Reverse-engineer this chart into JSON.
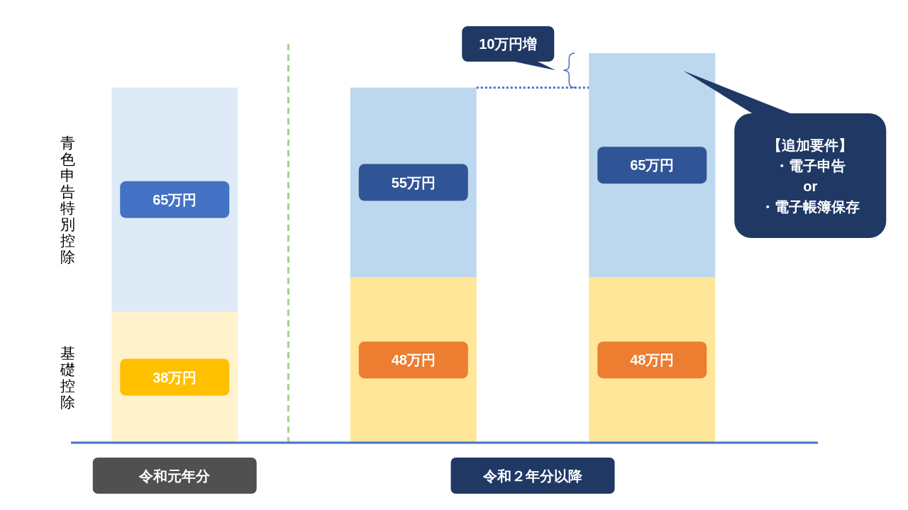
{
  "chart_data": {
    "type": "bar",
    "stacked": true,
    "tick_labels": "x",
    "categories": [
      "令和元年分",
      null,
      null
    ],
    "series": [
      {
        "name": "基礎控除",
        "colors": [
          "#fff2cc",
          "#ffe699",
          "#ffe699"
        ],
        "values": [
          38,
          48,
          48
        ],
        "value_labels": [
          "38万円",
          "48万円",
          "48万円"
        ]
      },
      {
        "name": "青色申告特別控除",
        "colors": [
          "#deebf7",
          "#bdd7ee",
          "#bdd7ee"
        ],
        "values": [
          65,
          55,
          65
        ],
        "value_labels": [
          "65万円",
          "55万円",
          "65万円"
        ]
      }
    ],
    "ref_lines": [
      {
        "axis": "y",
        "value": 103,
        "color": "#4472c4",
        "line_style": "dotted"
      }
    ],
    "annotations": [
      "10万円増",
      "令和２年分以降",
      "【追加要件】",
      "・電子申告",
      "or",
      "・電子帳簿保存"
    ]
  }
}
